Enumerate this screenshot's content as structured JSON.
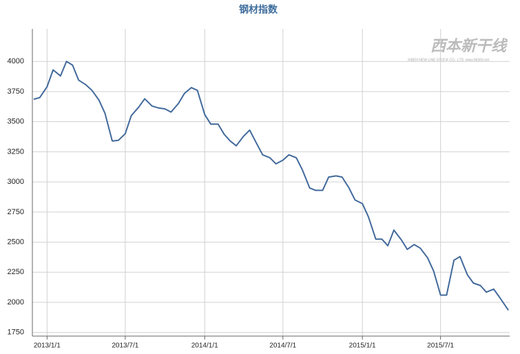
{
  "chart_data": {
    "type": "line",
    "title": "钢材指数",
    "watermark": {
      "logo": "西本新干线",
      "subtitle": "XIBEN NEW LINE STOCK CO., LTD. www.96369.net"
    },
    "x": [
      "2012/12/1",
      "2012/12/15",
      "2013/1/1",
      "2013/1/15",
      "2013/2/1",
      "2013/2/15",
      "2013/3/1",
      "2013/3/15",
      "2013/4/1",
      "2013/4/15",
      "2013/5/1",
      "2013/5/15",
      "2013/6/1",
      "2013/6/15",
      "2013/7/1",
      "2013/7/15",
      "2013/8/1",
      "2013/8/15",
      "2013/9/1",
      "2013/9/15",
      "2013/10/1",
      "2013/10/15",
      "2013/11/1",
      "2013/11/15",
      "2013/12/1",
      "2013/12/15",
      "2014/1/1",
      "2014/1/15",
      "2014/2/1",
      "2014/2/15",
      "2014/3/1",
      "2014/3/15",
      "2014/4/1",
      "2014/4/15",
      "2014/5/1",
      "2014/5/15",
      "2014/6/1",
      "2014/6/15",
      "2014/7/1",
      "2014/7/15",
      "2014/8/1",
      "2014/8/15",
      "2014/9/1",
      "2014/9/15",
      "2014/10/1",
      "2014/10/15",
      "2014/11/1",
      "2014/11/15",
      "2014/12/1",
      "2014/12/15",
      "2015/1/1",
      "2015/1/15",
      "2015/2/1",
      "2015/2/15",
      "2015/3/1",
      "2015/3/15",
      "2015/4/1",
      "2015/4/15",
      "2015/5/1",
      "2015/5/15",
      "2015/6/1",
      "2015/6/15",
      "2015/7/1",
      "2015/7/15",
      "2015/8/1",
      "2015/8/15",
      "2015/9/1",
      "2015/9/15",
      "2015/10/1",
      "2015/10/15",
      "2015/11/1",
      "2015/11/15",
      "2015/12/5"
    ],
    "series": [
      {
        "name": "钢材指数",
        "color": "#41699b",
        "values": [
          3686,
          3700,
          3790,
          3930,
          3880,
          4000,
          3970,
          3845,
          3806,
          3760,
          3680,
          3570,
          3340,
          3345,
          3400,
          3550,
          3620,
          3690,
          3630,
          3615,
          3606,
          3580,
          3650,
          3735,
          3783,
          3760,
          3560,
          3480,
          3480,
          3395,
          3340,
          3300,
          3380,
          3430,
          3320,
          3225,
          3200,
          3150,
          3180,
          3225,
          3200,
          3100,
          2950,
          2930,
          2930,
          3040,
          3050,
          3040,
          2950,
          2850,
          2820,
          2710,
          2525,
          2525,
          2470,
          2600,
          2520,
          2440,
          2480,
          2450,
          2370,
          2260,
          2060,
          2060,
          2350,
          2380,
          2230,
          2160,
          2140,
          2085,
          2110,
          2040,
          1935
        ]
      }
    ],
    "xlim": [
      "2012/11/28",
      "2015/12/8"
    ],
    "xticks": [
      "2013/1/1",
      "2013/7/1",
      "2014/1/1",
      "2014/7/1",
      "2015/1/1",
      "2015/7/1"
    ],
    "ylim": [
      1720,
      4270
    ],
    "yticks": [
      1750,
      2000,
      2250,
      2500,
      2750,
      3000,
      3250,
      3500,
      3750,
      4000
    ],
    "grid": true
  }
}
